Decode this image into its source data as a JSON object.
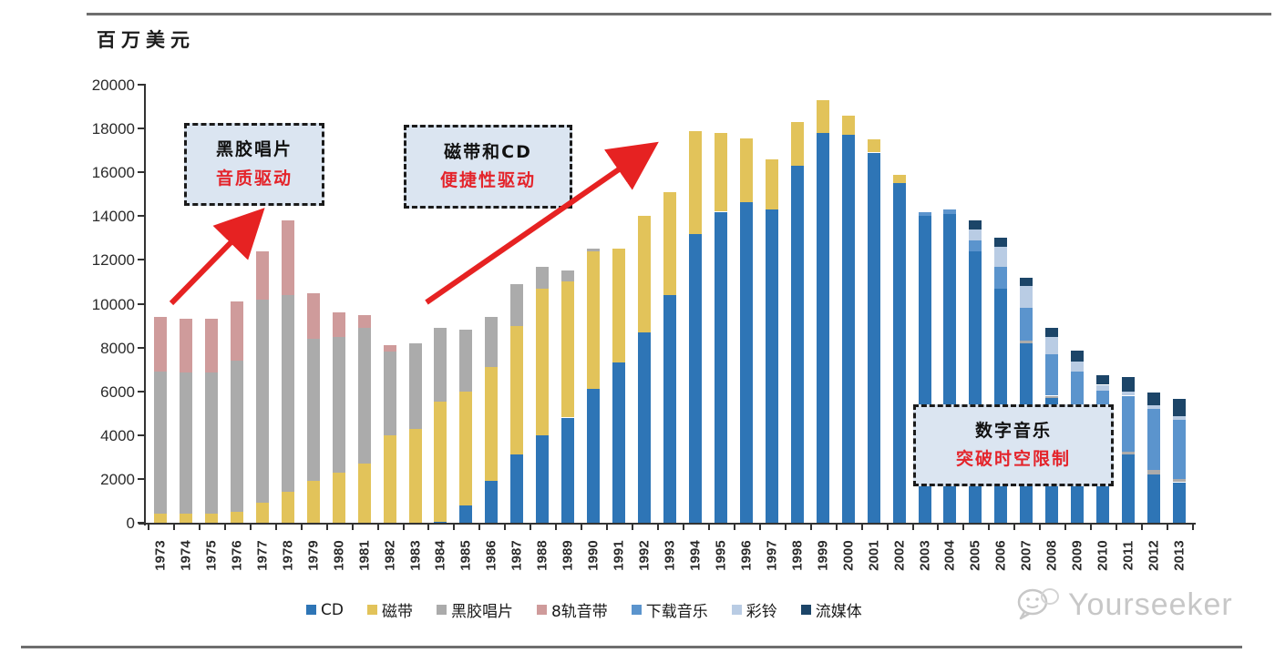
{
  "meta": {
    "watermark": "Yourseeker"
  },
  "chart_data": {
    "type": "bar",
    "stacked": true,
    "title": "",
    "xlabel": "",
    "ylabel": "百万美元",
    "ylim": [
      0,
      20000
    ],
    "yticks": [
      0,
      2000,
      4000,
      6000,
      8000,
      10000,
      12000,
      14000,
      16000,
      18000,
      20000
    ],
    "grid": false,
    "legend_position": "bottom",
    "categories": [
      "1973",
      "1974",
      "1975",
      "1976",
      "1977",
      "1978",
      "1979",
      "1980",
      "1981",
      "1982",
      "1983",
      "1984",
      "1985",
      "1986",
      "1987",
      "1988",
      "1989",
      "1990",
      "1991",
      "1992",
      "1993",
      "1994",
      "1995",
      "1996",
      "1997",
      "1998",
      "1999",
      "2000",
      "2001",
      "2002",
      "2003",
      "2004",
      "2005",
      "2006",
      "2007",
      "2008",
      "2009",
      "2010",
      "2011",
      "2012",
      "2013"
    ],
    "series": [
      {
        "name": "CD",
        "color": "#2e75b6",
        "values": [
          0,
          0,
          0,
          0,
          0,
          0,
          0,
          0,
          0,
          0,
          0,
          50,
          800,
          1900,
          3100,
          4000,
          4800,
          6100,
          7300,
          8700,
          10400,
          13200,
          14200,
          14650,
          14300,
          16300,
          17800,
          17700,
          16900,
          15500,
          14000,
          14100,
          12400,
          10700,
          8200,
          5700,
          4600,
          3750,
          3100,
          2200,
          1850
        ]
      },
      {
        "name": "磁带",
        "color": "#e2c35a",
        "values": [
          400,
          400,
          400,
          500,
          900,
          1400,
          1900,
          2300,
          2700,
          4000,
          4300,
          5500,
          5200,
          5200,
          5900,
          6700,
          6200,
          6300,
          5200,
          5300,
          4700,
          4700,
          3600,
          2900,
          2300,
          2000,
          1500,
          900,
          600,
          400,
          0,
          0,
          0,
          0,
          0,
          0,
          0,
          0,
          0,
          0,
          0
        ]
      },
      {
        "name": "黑胶唱片",
        "color": "#ababab",
        "values": [
          6500,
          6450,
          6460,
          6900,
          9300,
          9000,
          6500,
          6200,
          6200,
          3800,
          3900,
          3350,
          2800,
          2300,
          1900,
          1000,
          500,
          100,
          0,
          0,
          0,
          0,
          0,
          0,
          0,
          0,
          0,
          0,
          0,
          0,
          0,
          0,
          0,
          0,
          100,
          100,
          0,
          0,
          150,
          200,
          150
        ]
      },
      {
        "name": "8轨音带",
        "color": "#cf9b9b",
        "values": [
          2500,
          2450,
          2440,
          2700,
          2200,
          3400,
          2100,
          1100,
          600,
          300,
          0,
          0,
          0,
          0,
          0,
          0,
          0,
          0,
          0,
          0,
          0,
          0,
          0,
          0,
          0,
          0,
          0,
          0,
          0,
          0,
          0,
          0,
          0,
          0,
          0,
          0,
          0,
          0,
          0,
          0,
          0
        ]
      },
      {
        "name": "下载音乐",
        "color": "#5b94cd",
        "values": [
          0,
          0,
          0,
          0,
          0,
          0,
          0,
          0,
          0,
          0,
          0,
          0,
          0,
          0,
          0,
          0,
          0,
          0,
          0,
          0,
          0,
          0,
          0,
          0,
          0,
          0,
          0,
          0,
          0,
          0,
          200,
          200,
          500,
          1000,
          1500,
          1900,
          2300,
          2300,
          2550,
          2800,
          2700
        ]
      },
      {
        "name": "彩铃",
        "color": "#b9cce4",
        "values": [
          0,
          0,
          0,
          0,
          0,
          0,
          0,
          0,
          0,
          0,
          0,
          0,
          0,
          0,
          0,
          0,
          0,
          0,
          0,
          0,
          0,
          0,
          0,
          0,
          0,
          0,
          0,
          0,
          0,
          0,
          0,
          0,
          500,
          900,
          1000,
          800,
          450,
          250,
          200,
          150,
          150
        ]
      },
      {
        "name": "流媒体",
        "color": "#1c4568",
        "values": [
          0,
          0,
          0,
          0,
          0,
          0,
          0,
          0,
          0,
          0,
          0,
          0,
          0,
          0,
          0,
          0,
          0,
          0,
          0,
          0,
          0,
          0,
          0,
          0,
          0,
          0,
          0,
          0,
          0,
          0,
          0,
          0,
          400,
          400,
          400,
          400,
          500,
          450,
          650,
          600,
          800
        ]
      }
    ]
  },
  "annotations": {
    "box1": {
      "line1": "黑胶唱片",
      "line2": "音质驱动"
    },
    "box2": {
      "line1": "磁带和CD",
      "line2": "便捷性驱动"
    },
    "box3": {
      "line1": "数字音乐",
      "line2": "突破时空限制"
    }
  },
  "colors": {
    "arrow": "#e62222",
    "annotation_bg": "#dbe5f1",
    "annotation_accent": "#e4242b",
    "axis": "#333333",
    "watermark": "#c7c7c7"
  }
}
